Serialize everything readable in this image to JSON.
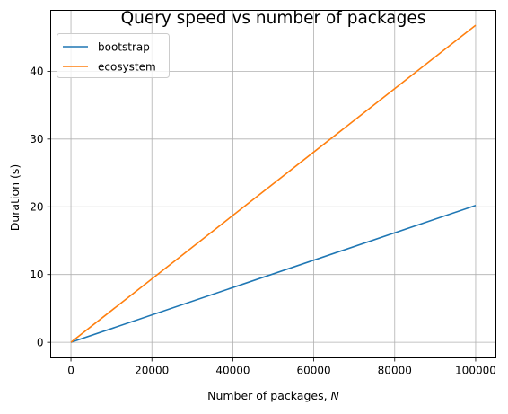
{
  "chart_data": {
    "type": "line",
    "title": "Query speed vs number of packages",
    "xlabel": "Number of packages, ",
    "xlabel_var": "N",
    "ylabel": "Duration (s)",
    "xlim": [
      -5000,
      105000
    ],
    "ylim": [
      -2.3,
      49
    ],
    "xticks": [
      0,
      20000,
      40000,
      60000,
      80000,
      100000
    ],
    "xtick_labels": [
      "0",
      "20000",
      "40000",
      "60000",
      "80000",
      "100000"
    ],
    "yticks": [
      0,
      10,
      20,
      30,
      40
    ],
    "ytick_labels": [
      "0",
      "10",
      "20",
      "30",
      "40"
    ],
    "grid": true,
    "legend_position": "top-left",
    "series": [
      {
        "name": "bootstrap",
        "color": "#1f77b4",
        "x": [
          0,
          100000
        ],
        "y": [
          0,
          20.2
        ]
      },
      {
        "name": "ecosystem",
        "color": "#ff7f0e",
        "x": [
          0,
          100000
        ],
        "y": [
          0,
          46.8
        ]
      }
    ]
  }
}
